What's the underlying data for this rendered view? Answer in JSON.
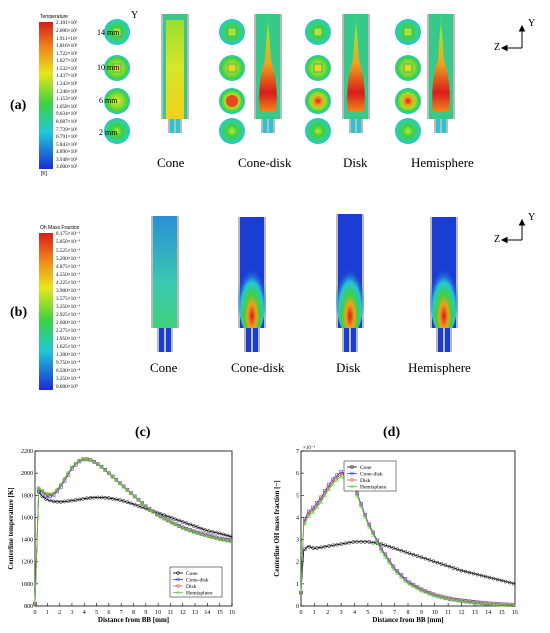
{
  "figure": {
    "panel_a_label": "(a)",
    "panel_b_label": "(b)",
    "panel_c_label": "(c)",
    "panel_d_label": "(d)",
    "cases": [
      "Cone",
      "Cone-disk",
      "Disk",
      "Hemisphere"
    ],
    "heights": [
      "14 mm",
      "10 mm",
      "6 mm",
      "2 mm"
    ],
    "y_axis_label": "Y",
    "axes_a": {
      "y": "Y",
      "z": "Z"
    },
    "axes_b": {
      "y": "Y",
      "z": "Z"
    }
  },
  "temp_legend": {
    "title": "Temperature",
    "unit": "[K]",
    "ticks": [
      "2.101×10³",
      "2.006×10³",
      "1.911×10³",
      "1.816×10³",
      "1.722×10³",
      "1.627×10³",
      "1.532×10³",
      "1.437×10³",
      "1.343×10³",
      "1.248×10³",
      "1.153×10³",
      "1.058×10³",
      "9.634×10²",
      "8.687×10²",
      "7.739×10²",
      "6.791×10²",
      "5.843×10²",
      "4.896×10²",
      "3.948×10²",
      "3.000×10²"
    ]
  },
  "oh_legend": {
    "title": "Oh Mass Fraction",
    "ticks": [
      "6.175×10⁻³",
      "5.850×10⁻³",
      "5.525×10⁻³",
      "5.200×10⁻³",
      "4.875×10⁻³",
      "4.550×10⁻³",
      "4.225×10⁻³",
      "3.900×10⁻³",
      "3.575×10⁻³",
      "3.250×10⁻³",
      "2.925×10⁻³",
      "2.600×10⁻³",
      "2.275×10⁻³",
      "1.950×10⁻³",
      "1.625×10⁻³",
      "1.300×10⁻³",
      "9.750×10⁻⁴",
      "6.500×10⁻⁴",
      "3.250×10⁻⁴",
      "0.000×10⁰"
    ]
  },
  "colors": {
    "blue": "#1a3dd6",
    "cyan": "#26c6d6",
    "green": "#3fd13f",
    "yellow": "#f2e21c",
    "orange": "#f08a1c",
    "red": "#d81c1c",
    "wall": "#a8a8a8",
    "cone": "#000000",
    "cone_disk": "#3333ff",
    "disk": "#d65c2a",
    "hemisphere": "#5ccd3c"
  },
  "chart_data": [
    {
      "type": "line",
      "xlabel": "Distance from BB [mm]",
      "ylabel": "Centerline temperature [K]",
      "xlim": [
        0,
        16
      ],
      "ylim": [
        800,
        2200
      ],
      "xticks": [
        0,
        1,
        2,
        3,
        4,
        5,
        6,
        7,
        8,
        9,
        10,
        11,
        12,
        13,
        14,
        15,
        16
      ],
      "yticks": [
        800,
        1000,
        1200,
        1400,
        1600,
        1800,
        2000,
        2200
      ],
      "grid": false,
      "legend": "bottom-right",
      "series": [
        {
          "name": "Cone",
          "x": [
            0,
            0.3,
            0.6,
            1,
            1.5,
            2,
            2.5,
            3,
            3.5,
            4,
            4.5,
            5,
            5.5,
            6,
            7,
            8,
            9,
            10,
            11,
            12,
            13,
            14,
            15,
            16
          ],
          "y": [
            820,
            1830,
            1790,
            1760,
            1745,
            1740,
            1745,
            1752,
            1760,
            1770,
            1777,
            1780,
            1780,
            1775,
            1755,
            1720,
            1680,
            1640,
            1600,
            1560,
            1520,
            1480,
            1455,
            1425
          ]
        },
        {
          "name": "Cone-disk",
          "x": [
            0,
            0.3,
            0.6,
            1,
            1.5,
            2,
            2.5,
            3,
            3.5,
            4,
            4.5,
            5,
            5.5,
            6,
            7,
            8,
            9,
            10,
            11,
            12,
            13,
            14,
            15,
            16
          ],
          "y": [
            820,
            1850,
            1830,
            1790,
            1800,
            1860,
            1950,
            2040,
            2100,
            2130,
            2120,
            2090,
            2050,
            2000,
            1900,
            1800,
            1700,
            1620,
            1560,
            1510,
            1470,
            1440,
            1410,
            1390
          ]
        },
        {
          "name": "Disk",
          "x": [
            0,
            0.3,
            0.6,
            1,
            1.5,
            2,
            2.5,
            3,
            3.5,
            4,
            4.5,
            5,
            5.5,
            6,
            7,
            8,
            9,
            10,
            11,
            12,
            13,
            14,
            15,
            16
          ],
          "y": [
            820,
            1860,
            1835,
            1800,
            1810,
            1870,
            1960,
            2050,
            2105,
            2130,
            2118,
            2085,
            2045,
            1995,
            1895,
            1795,
            1695,
            1615,
            1555,
            1505,
            1465,
            1435,
            1405,
            1385
          ]
        },
        {
          "name": "Hemisphere",
          "x": [
            0,
            0.3,
            0.6,
            1,
            1.5,
            2,
            2.5,
            3,
            3.5,
            4,
            4.5,
            5,
            5.5,
            6,
            7,
            8,
            9,
            10,
            11,
            12,
            13,
            14,
            15,
            16
          ],
          "y": [
            820,
            1870,
            1840,
            1810,
            1820,
            1880,
            1970,
            2055,
            2110,
            2135,
            2122,
            2090,
            2050,
            2000,
            1900,
            1800,
            1700,
            1620,
            1560,
            1505,
            1465,
            1435,
            1405,
            1382
          ]
        }
      ]
    },
    {
      "type": "line",
      "xlabel": "Distance from BB [mm]",
      "ylabel": "Centerline OH mass fraction [−]",
      "scale_label": "×10⁻³",
      "xlim": [
        0,
        16
      ],
      "ylim": [
        0,
        7
      ],
      "xticks": [
        0,
        1,
        2,
        3,
        4,
        5,
        6,
        7,
        8,
        9,
        10,
        11,
        12,
        13,
        14,
        15,
        16
      ],
      "yticks": [
        0,
        1,
        2,
        3,
        4,
        5,
        6,
        7
      ],
      "grid": false,
      "legend": "top-left",
      "series": [
        {
          "name": "Cone",
          "x": [
            0,
            0.2,
            0.5,
            1,
            2,
            3,
            4,
            5,
            6,
            7,
            8,
            9,
            10,
            11,
            12,
            13,
            14,
            15,
            16
          ],
          "y": [
            0.6,
            2.5,
            2.7,
            2.6,
            2.7,
            2.8,
            2.9,
            2.9,
            2.8,
            2.6,
            2.4,
            2.2,
            2.0,
            1.8,
            1.6,
            1.45,
            1.3,
            1.15,
            1.0
          ]
        },
        {
          "name": "Cone-disk",
          "x": [
            0,
            0.2,
            0.5,
            1,
            1.5,
            2,
            2.5,
            3,
            3.5,
            4,
            4.5,
            5,
            6,
            7,
            8,
            9,
            10,
            11,
            12,
            13,
            14,
            15,
            16
          ],
          "y": [
            0.6,
            3.8,
            4.2,
            4.5,
            4.9,
            5.4,
            5.8,
            6.05,
            5.9,
            5.4,
            4.6,
            3.8,
            2.6,
            1.7,
            1.1,
            0.75,
            0.5,
            0.35,
            0.25,
            0.18,
            0.12,
            0.08,
            0.05
          ]
        },
        {
          "name": "Disk",
          "x": [
            0,
            0.2,
            0.5,
            1,
            1.5,
            2,
            2.5,
            3,
            3.5,
            4,
            4.5,
            5,
            6,
            7,
            8,
            9,
            10,
            11,
            12,
            13,
            14,
            15,
            16
          ],
          "y": [
            0.6,
            3.7,
            4.1,
            4.4,
            4.8,
            5.3,
            5.7,
            5.95,
            5.85,
            5.35,
            4.55,
            3.75,
            2.55,
            1.65,
            1.05,
            0.72,
            0.48,
            0.33,
            0.23,
            0.16,
            0.11,
            0.07,
            0.04
          ]
        },
        {
          "name": "Hemisphere",
          "x": [
            0,
            0.2,
            0.5,
            1,
            1.5,
            2,
            2.5,
            3,
            3.5,
            4,
            4.5,
            5,
            6,
            7,
            8,
            9,
            10,
            11,
            12,
            13,
            14,
            15,
            16
          ],
          "y": [
            0.6,
            3.6,
            4.0,
            4.3,
            4.7,
            5.2,
            5.6,
            5.85,
            5.75,
            5.3,
            4.5,
            3.7,
            2.5,
            1.6,
            1.02,
            0.7,
            0.46,
            0.32,
            0.22,
            0.15,
            0.1,
            0.06,
            0.04
          ]
        }
      ]
    }
  ]
}
